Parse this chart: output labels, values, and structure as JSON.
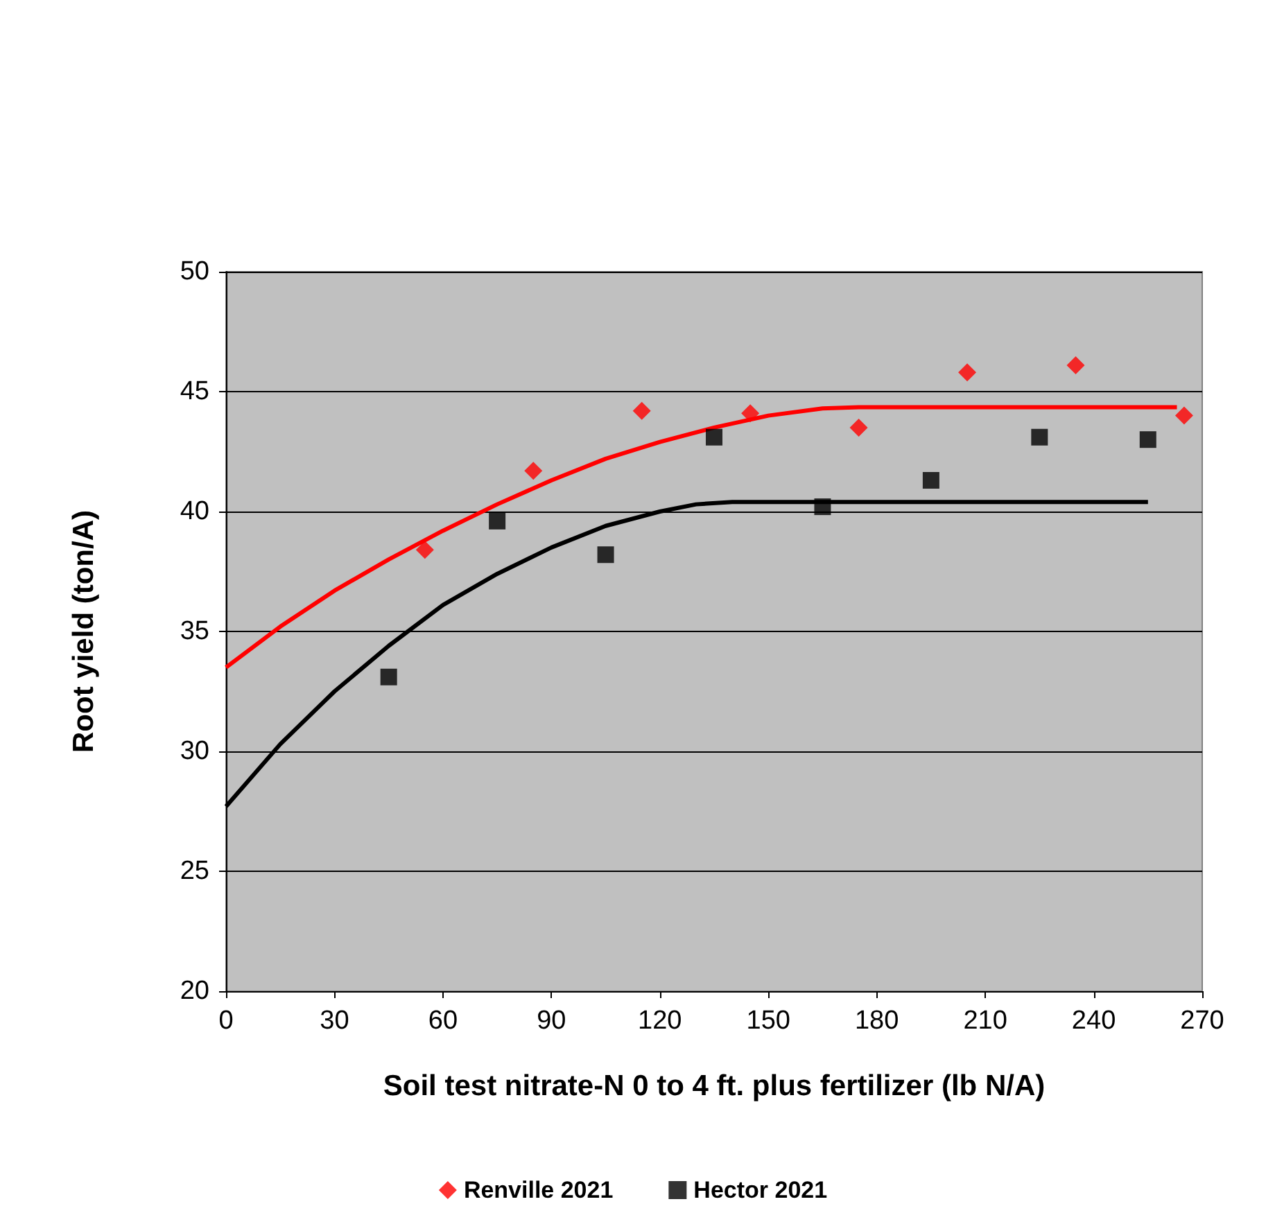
{
  "chart_data": {
    "type": "scatter",
    "xlabel": "Soil test nitrate-N 0 to 4 ft. plus fertilizer (lb N/A)",
    "ylabel": "Root yield (ton/A)",
    "xlim": [
      0,
      270
    ],
    "xticks": [
      0,
      30,
      60,
      90,
      120,
      150,
      180,
      210,
      240,
      270
    ],
    "ylim": [
      20,
      50
    ],
    "yticks": [
      20,
      25,
      30,
      35,
      40,
      45,
      50
    ],
    "grid": "y",
    "legend": "bottom",
    "series": [
      {
        "name": "Renville 2021",
        "marker": "diamond",
        "color": "#ff0000",
        "x": [
          55,
          85,
          115,
          145,
          175,
          205,
          235,
          265
        ],
        "values": [
          38.4,
          41.7,
          44.2,
          44.1,
          43.5,
          45.8,
          46.1,
          44.0
        ]
      },
      {
        "name": "Hector 2021",
        "marker": "square",
        "color": "#000000",
        "x": [
          45,
          75,
          105,
          135,
          165,
          195,
          225,
          255
        ],
        "values": [
          33.1,
          39.6,
          38.2,
          43.1,
          40.2,
          41.3,
          43.1,
          43.0
        ]
      },
      {
        "type": "line",
        "marker": "none",
        "color": "#ff0000",
        "x": [
          0,
          15,
          30,
          45,
          60,
          75,
          90,
          105,
          120,
          135,
          150,
          165,
          175,
          263
        ],
        "values": [
          33.5,
          35.2,
          36.7,
          38.0,
          39.2,
          40.3,
          41.3,
          42.2,
          42.9,
          43.5,
          44.0,
          44.3,
          44.35,
          44.35
        ]
      },
      {
        "type": "line",
        "marker": "none",
        "color": "#000000",
        "x": [
          0,
          15,
          30,
          45,
          60,
          75,
          90,
          105,
          120,
          130,
          140,
          255
        ],
        "values": [
          27.7,
          30.3,
          32.5,
          34.4,
          36.1,
          37.4,
          38.5,
          39.4,
          40.0,
          40.3,
          40.4,
          40.4
        ]
      }
    ]
  }
}
